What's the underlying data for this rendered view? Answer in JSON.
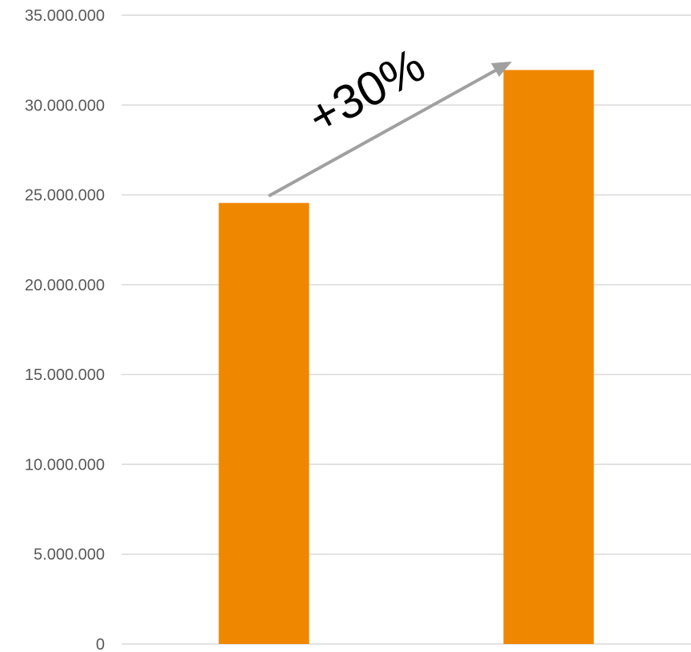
{
  "chart_data": {
    "type": "bar",
    "title": "",
    "xlabel": "",
    "ylabel": "",
    "categories": [
      "",
      ""
    ],
    "values": [
      24550000,
      31950000
    ],
    "ylim": [
      0,
      35000000
    ],
    "yticks": [
      "0",
      "5.000.000",
      "10.000.000",
      "15.000.000",
      "20.000.000",
      "25.000.000",
      "30.000.000",
      "35.000.000"
    ],
    "grid": true,
    "legend": "none",
    "bar_color": "#F08700",
    "annotation": {
      "text": "+30%",
      "arrow_color": "#A0A0A0"
    }
  }
}
